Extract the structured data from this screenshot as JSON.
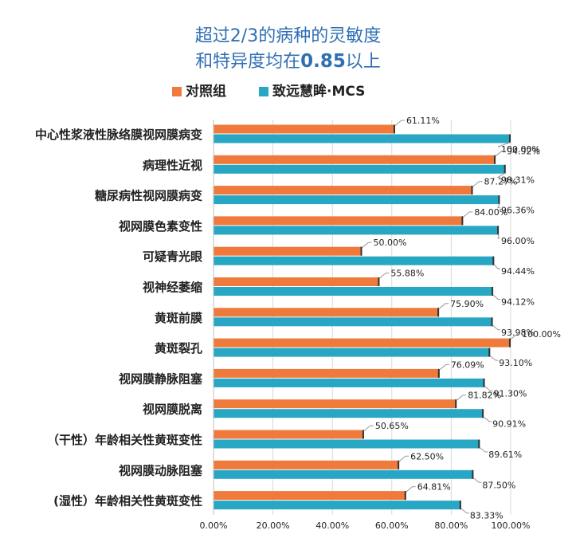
{
  "header": {
    "title_line1": "超过2/3的病种的灵敏度",
    "title_line2_prefix": "和特异度均在",
    "title_line2_number": "0.85",
    "title_line2_suffix": "以上"
  },
  "colors": {
    "control": "#f07a3c",
    "mcs": "#27a7c3",
    "text": "#222222",
    "title": "#2f6fb5"
  },
  "chart_data": {
    "type": "bar",
    "orientation": "horizontal",
    "categories": [
      "中心性浆液性脉络膜视网膜病变",
      "病理性近视",
      "糖尿病性视网膜病变",
      "视网膜色素变性",
      "可疑青光眼",
      "视神经萎缩",
      "黄斑前膜",
      "黄斑裂孔",
      "视网膜静脉阻塞",
      "视网膜脱离",
      "（干性）年龄相关性黄斑变性",
      "视网膜动脉阻塞",
      "(湿性）年龄相关性黄斑变性"
    ],
    "series": [
      {
        "name": "对照组",
        "color": "#f07a3c",
        "values": [
          61.11,
          94.92,
          87.27,
          84.0,
          50.0,
          55.88,
          75.9,
          100.0,
          76.09,
          81.82,
          50.65,
          62.5,
          64.81
        ],
        "labels": [
          "61.11%",
          "94.92%",
          "87.27%",
          "84.00%",
          "50.00%",
          "55.88%",
          "75.90%",
          "100.00%",
          "76.09%",
          "81.82%",
          "50.65%",
          "62.50%",
          "64.81%"
        ]
      },
      {
        "name": "致远慧眸·MCS",
        "color": "#27a7c3",
        "values": [
          100.0,
          98.31,
          96.36,
          96.0,
          94.44,
          94.12,
          93.98,
          93.1,
          91.3,
          90.91,
          89.61,
          87.5,
          83.33
        ],
        "labels": [
          "100.00%",
          "98.31%",
          "96.36%",
          "96.00%",
          "94.44%",
          "94.12%",
          "93.98%",
          "93.10%",
          "91.30%",
          "90.91%",
          "89.61%",
          "87.50%",
          "83.33%"
        ]
      }
    ],
    "xlim": [
      0,
      100
    ],
    "x_ticks": [
      0,
      20,
      40,
      60,
      80,
      100
    ],
    "x_tick_labels": [
      "0.00%",
      "20.00%",
      "40.00%",
      "60.00%",
      "80.00%",
      "100.00%"
    ],
    "grid": true,
    "legend_position": "top"
  }
}
